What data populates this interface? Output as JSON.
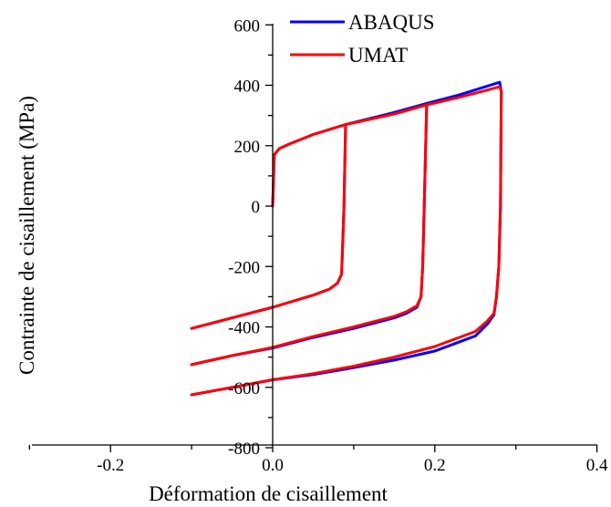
{
  "chart_data": {
    "type": "line",
    "title": "",
    "xlabel": "Déformation de cisaillement",
    "ylabel": "Contrainte de cisaillement (MPa)",
    "xlim": [
      -0.3,
      0.4
    ],
    "ylim": [
      -800,
      600
    ],
    "x_ticks": [
      -0.2,
      0.0,
      0.2,
      0.4
    ],
    "x_tick_labels": [
      "-0.2",
      "0.0",
      "0.2",
      "0.4"
    ],
    "y_ticks": [
      -800,
      -600,
      -400,
      -200,
      0,
      200,
      400,
      600
    ],
    "y_tick_labels": [
      "-800",
      "-600",
      "-400",
      "-200",
      "0",
      "200",
      "400",
      "600"
    ],
    "grid": false,
    "legend_position": "top",
    "series": [
      {
        "name": "ABAQUS",
        "color": "#0000ff",
        "segments": [
          [
            [
              0.0,
              0
            ],
            [
              0.002,
              170
            ],
            [
              0.008,
              190
            ],
            [
              0.02,
              205
            ],
            [
              0.05,
              237
            ],
            [
              0.09,
              270
            ],
            [
              0.15,
              310
            ],
            [
              0.19,
              340
            ],
            [
              0.23,
              368
            ],
            [
              0.28,
              410
            ],
            [
              0.282,
              380
            ],
            [
              0.281,
              0
            ],
            [
              0.279,
              -200
            ],
            [
              0.276,
              -300
            ],
            [
              0.273,
              -360
            ],
            [
              0.265,
              -390
            ],
            [
              0.25,
              -430
            ],
            [
              0.2,
              -480
            ],
            [
              0.15,
              -510
            ],
            [
              0.1,
              -535
            ],
            [
              0.05,
              -558
            ],
            [
              0.0,
              -575
            ],
            [
              -0.05,
              -600
            ],
            [
              -0.1,
              -625
            ]
          ],
          [
            [
              0.09,
              270
            ],
            [
              0.088,
              0
            ],
            [
              0.086,
              -150
            ],
            [
              0.085,
              -225
            ],
            [
              0.08,
              -255
            ],
            [
              0.07,
              -275
            ],
            [
              0.05,
              -295
            ],
            [
              0.0,
              -335
            ],
            [
              -0.05,
              -370
            ],
            [
              -0.1,
              -405
            ]
          ],
          [
            [
              0.19,
              340
            ],
            [
              0.187,
              0
            ],
            [
              0.185,
              -200
            ],
            [
              0.183,
              -300
            ],
            [
              0.178,
              -335
            ],
            [
              0.165,
              -355
            ],
            [
              0.15,
              -370
            ],
            [
              0.1,
              -405
            ],
            [
              0.05,
              -435
            ],
            [
              0.0,
              -470
            ],
            [
              -0.05,
              -495
            ],
            [
              -0.1,
              -525
            ]
          ]
        ]
      },
      {
        "name": "UMAT",
        "color": "#ff0000",
        "segments": [
          [
            [
              0.0,
              0
            ],
            [
              0.002,
              170
            ],
            [
              0.008,
              190
            ],
            [
              0.02,
              205
            ],
            [
              0.05,
              237
            ],
            [
              0.09,
              270
            ],
            [
              0.15,
              305
            ],
            [
              0.19,
              335
            ],
            [
              0.23,
              360
            ],
            [
              0.28,
              395
            ],
            [
              0.282,
              380
            ],
            [
              0.281,
              0
            ],
            [
              0.279,
              -200
            ],
            [
              0.276,
              -300
            ],
            [
              0.273,
              -355
            ],
            [
              0.265,
              -380
            ],
            [
              0.25,
              -415
            ],
            [
              0.2,
              -465
            ],
            [
              0.15,
              -500
            ],
            [
              0.1,
              -530
            ],
            [
              0.05,
              -555
            ],
            [
              0.0,
              -575
            ],
            [
              -0.05,
              -600
            ],
            [
              -0.1,
              -625
            ]
          ],
          [
            [
              0.09,
              270
            ],
            [
              0.088,
              0
            ],
            [
              0.086,
              -150
            ],
            [
              0.085,
              -225
            ],
            [
              0.08,
              -255
            ],
            [
              0.07,
              -275
            ],
            [
              0.05,
              -295
            ],
            [
              0.0,
              -335
            ],
            [
              -0.05,
              -370
            ],
            [
              -0.1,
              -405
            ]
          ],
          [
            [
              0.19,
              335
            ],
            [
              0.187,
              0
            ],
            [
              0.185,
              -200
            ],
            [
              0.183,
              -300
            ],
            [
              0.178,
              -330
            ],
            [
              0.165,
              -350
            ],
            [
              0.15,
              -365
            ],
            [
              0.1,
              -400
            ],
            [
              0.05,
              -432
            ],
            [
              0.0,
              -468
            ],
            [
              -0.05,
              -495
            ],
            [
              -0.1,
              -525
            ]
          ]
        ]
      }
    ]
  }
}
